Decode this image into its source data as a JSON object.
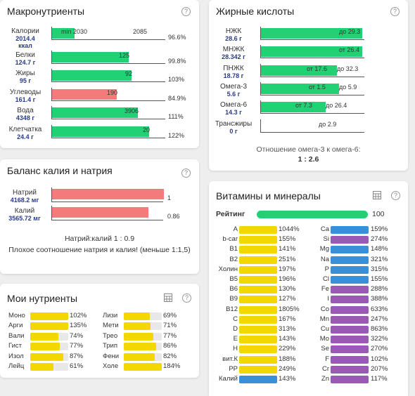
{
  "macro": {
    "title": "Макронутриенты",
    "rows": [
      {
        "name": "Калории",
        "value": "2014.4",
        "unit": "ккал",
        "min_label": "min 2030",
        "max_label": "2085",
        "pct": "96.6%",
        "fill": 0.2,
        "color": "green"
      },
      {
        "name": "Белки",
        "value": "124.7 г",
        "unit": "",
        "max_label": "125",
        "pct": "99.8%",
        "fill": 0.67,
        "color": "green"
      },
      {
        "name": "Жиры",
        "value": "95 г",
        "unit": "",
        "max_label": "92",
        "pct": "103%",
        "fill": 0.7,
        "color": "green"
      },
      {
        "name": "Углеводы",
        "value": "161.4 г",
        "unit": "",
        "max_label": "190",
        "pct": "84.9%",
        "fill": 0.57,
        "color": "red"
      },
      {
        "name": "Вода",
        "value": "4348 г",
        "unit": "",
        "max_label": "3906",
        "pct": "111%",
        "fill": 0.75,
        "color": "green"
      },
      {
        "name": "Клетчатка",
        "value": "24.4 г",
        "unit": "",
        "max_label": "20",
        "pct": "122%",
        "fill": 0.85,
        "color": "green"
      }
    ]
  },
  "fatty": {
    "title": "Жирные кислоты",
    "rows": [
      {
        "name": "НЖК",
        "value": "28.6 г",
        "labels": [
          "до 29.3"
        ],
        "fill": 0.97
      },
      {
        "name": "МНЖК",
        "value": "28.342 г",
        "labels": [
          "от 26.4"
        ],
        "fill": 0.97
      },
      {
        "name": "ПНЖК",
        "value": "18.78 г",
        "labels": [
          "от 17.6",
          "до 32.3"
        ],
        "fill": 0.73
      },
      {
        "name": "Омега-3",
        "value": "5.6 г",
        "labels": [
          "от 1.5",
          "до 5.9"
        ],
        "fill": 0.75
      },
      {
        "name": "Омега-6",
        "value": "14.3 г",
        "labels": [
          "от 7.3",
          "до 26.4"
        ],
        "fill": 0.62
      },
      {
        "name": "Трансжиры",
        "value": "0 г",
        "labels": [
          "до 2.9"
        ],
        "fill": 0
      }
    ],
    "ratio_label": "Отношение омега-3 к омега-6:",
    "ratio_value": "1 : 2.6"
  },
  "kna": {
    "title": "Баланс калия и натрия",
    "rows": [
      {
        "name": "Натрий",
        "value": "4168.2 мг",
        "val": "1",
        "fill": 1.0
      },
      {
        "name": "Калий",
        "value": "3565.72 мг",
        "val": "0.86",
        "fill": 0.86
      }
    ],
    "ratio": "Натрий:калий 1 : 0.9",
    "warning": "Плохое соотношение натрия и калия! (меньше 1:1,5)"
  },
  "vm": {
    "title": "Витамины и минералы",
    "rating_label": "Рейтинг",
    "rating_value": "100",
    "left": [
      {
        "name": "A",
        "pct": "1044%",
        "fill": 1.0,
        "color": "yellow"
      },
      {
        "name": "b-car",
        "pct": "155%",
        "fill": 1.0,
        "color": "yellow"
      },
      {
        "name": "B1",
        "pct": "141%",
        "fill": 1.0,
        "color": "yellow"
      },
      {
        "name": "B2",
        "pct": "251%",
        "fill": 1.0,
        "color": "yellow"
      },
      {
        "name": "Холин",
        "pct": "197%",
        "fill": 1.0,
        "color": "yellow"
      },
      {
        "name": "B5",
        "pct": "196%",
        "fill": 1.0,
        "color": "yellow"
      },
      {
        "name": "B6",
        "pct": "130%",
        "fill": 1.0,
        "color": "yellow"
      },
      {
        "name": "B9",
        "pct": "127%",
        "fill": 1.0,
        "color": "yellow"
      },
      {
        "name": "B12",
        "pct": "1805%",
        "fill": 1.0,
        "color": "yellow"
      },
      {
        "name": "C",
        "pct": "167%",
        "fill": 1.0,
        "color": "yellow"
      },
      {
        "name": "D",
        "pct": "313%",
        "fill": 1.0,
        "color": "yellow"
      },
      {
        "name": "E",
        "pct": "143%",
        "fill": 1.0,
        "color": "yellow"
      },
      {
        "name": "H",
        "pct": "229%",
        "fill": 1.0,
        "color": "yellow"
      },
      {
        "name": "вит.К",
        "pct": "188%",
        "fill": 1.0,
        "color": "yellow"
      },
      {
        "name": "PP",
        "pct": "249%",
        "fill": 1.0,
        "color": "yellow"
      },
      {
        "name": "Калий",
        "pct": "143%",
        "fill": 1.0,
        "color": "blue"
      }
    ],
    "right": [
      {
        "name": "Ca",
        "pct": "159%",
        "fill": 1.0,
        "color": "blue"
      },
      {
        "name": "Si",
        "pct": "274%",
        "fill": 1.0,
        "color": "purple"
      },
      {
        "name": "Mg",
        "pct": "148%",
        "fill": 1.0,
        "color": "blue"
      },
      {
        "name": "Na",
        "pct": "321%",
        "fill": 1.0,
        "color": "blue"
      },
      {
        "name": "P",
        "pct": "315%",
        "fill": 1.0,
        "color": "blue"
      },
      {
        "name": "Cl",
        "pct": "155%",
        "fill": 1.0,
        "color": "blue"
      },
      {
        "name": "Fe",
        "pct": "288%",
        "fill": 1.0,
        "color": "purple"
      },
      {
        "name": "I",
        "pct": "388%",
        "fill": 1.0,
        "color": "purple"
      },
      {
        "name": "Co",
        "pct": "633%",
        "fill": 1.0,
        "color": "purple"
      },
      {
        "name": "Mn",
        "pct": "247%",
        "fill": 1.0,
        "color": "purple"
      },
      {
        "name": "Cu",
        "pct": "863%",
        "fill": 1.0,
        "color": "purple"
      },
      {
        "name": "Mo",
        "pct": "322%",
        "fill": 1.0,
        "color": "purple"
      },
      {
        "name": "Se",
        "pct": "270%",
        "fill": 1.0,
        "color": "purple"
      },
      {
        "name": "F",
        "pct": "102%",
        "fill": 1.0,
        "color": "purple"
      },
      {
        "name": "Cr",
        "pct": "207%",
        "fill": 1.0,
        "color": "purple"
      },
      {
        "name": "Zn",
        "pct": "117%",
        "fill": 1.0,
        "color": "purple"
      }
    ]
  },
  "my": {
    "title": "Мои нутриенты",
    "left": [
      {
        "name": "Моно",
        "pct": "102%",
        "fill": 1.0
      },
      {
        "name": "Арги",
        "pct": "135%",
        "fill": 1.0
      },
      {
        "name": "Вали",
        "pct": "74%",
        "fill": 0.74
      },
      {
        "name": "Гист",
        "pct": "77%",
        "fill": 0.77
      },
      {
        "name": "Изол",
        "pct": "87%",
        "fill": 0.87
      },
      {
        "name": "Лейц",
        "pct": "61%",
        "fill": 0.61
      }
    ],
    "right": [
      {
        "name": "Лизи",
        "pct": "69%",
        "fill": 0.69
      },
      {
        "name": "Мети",
        "pct": "71%",
        "fill": 0.71
      },
      {
        "name": "Трео",
        "pct": "77%",
        "fill": 0.77
      },
      {
        "name": "Трип",
        "pct": "86%",
        "fill": 0.86
      },
      {
        "name": "Фени",
        "pct": "82%",
        "fill": 0.82
      },
      {
        "name": "Холе",
        "pct": "184%",
        "fill": 1.0
      }
    ]
  }
}
